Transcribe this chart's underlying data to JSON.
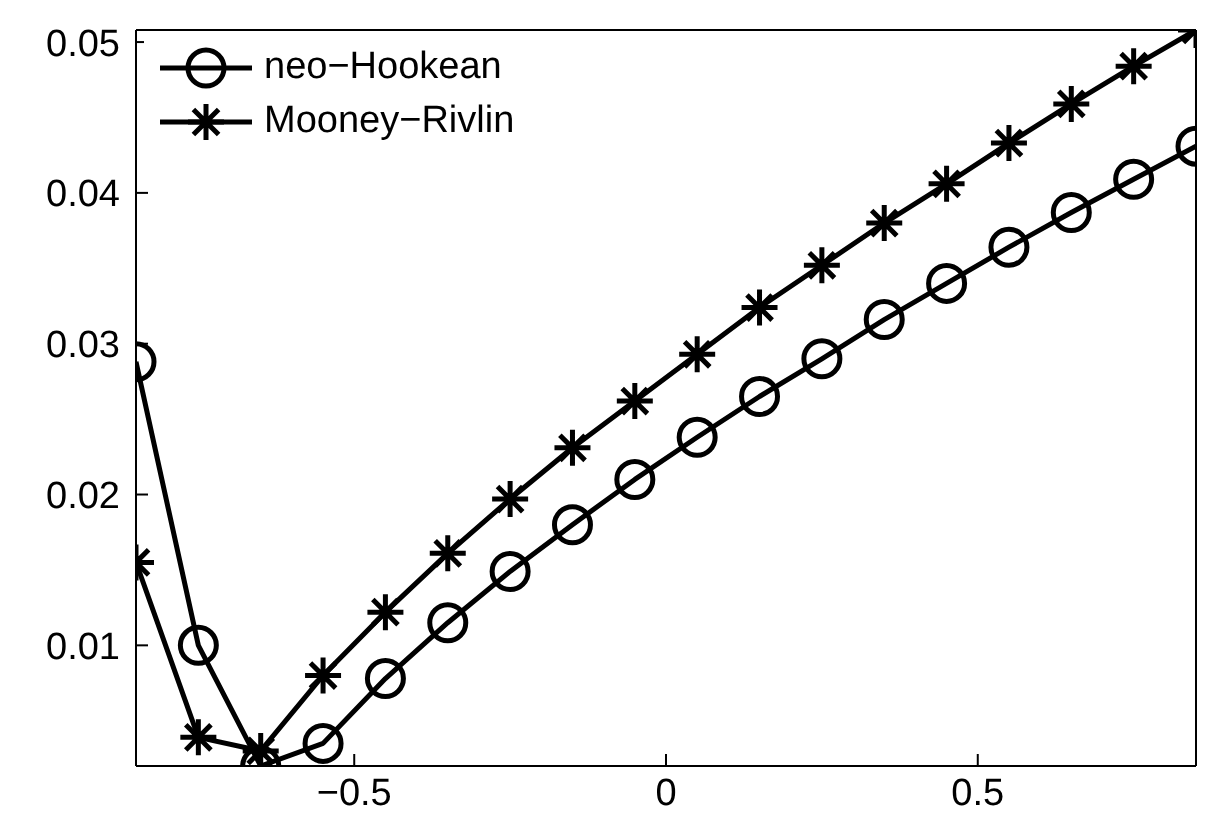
{
  "chart_data": {
    "type": "line",
    "x": [
      -0.85,
      -0.75,
      -0.65,
      -0.55,
      -0.45,
      -0.35,
      -0.25,
      -0.15,
      -0.05,
      0.05,
      0.15,
      0.25,
      0.35,
      0.45,
      0.55,
      0.65,
      0.75,
      0.85
    ],
    "series": [
      {
        "name": "neo−Hookean",
        "color": "#000000",
        "marker": "circle",
        "values": [
          0.0288,
          0.01,
          0.002,
          0.0035,
          0.0078,
          0.0115,
          0.0149,
          0.018,
          0.021,
          0.0238,
          0.0265,
          0.029,
          0.0316,
          0.034,
          0.0364,
          0.0387,
          0.0409,
          0.0431
        ]
      },
      {
        "name": "Mooney−Rivlin",
        "color": "#000000",
        "marker": "cross",
        "values": [
          0.0155,
          0.0039,
          0.003,
          0.008,
          0.0122,
          0.0161,
          0.0197,
          0.0231,
          0.0262,
          0.0293,
          0.0324,
          0.0352,
          0.038,
          0.0406,
          0.0433,
          0.0459,
          0.0484,
          0.0508
        ]
      }
    ],
    "xlim": [
      -0.85,
      0.85
    ],
    "xticks": [
      {
        "value": -0.5,
        "label": "−0.5"
      },
      0,
      0.5
    ],
    "ylim": [
      0.002,
      0.0508
    ],
    "yticks": [
      0.01,
      0.02,
      0.03,
      0.04,
      0.05
    ],
    "grid": false,
    "legend": "top left",
    "line_style": "solid"
  }
}
